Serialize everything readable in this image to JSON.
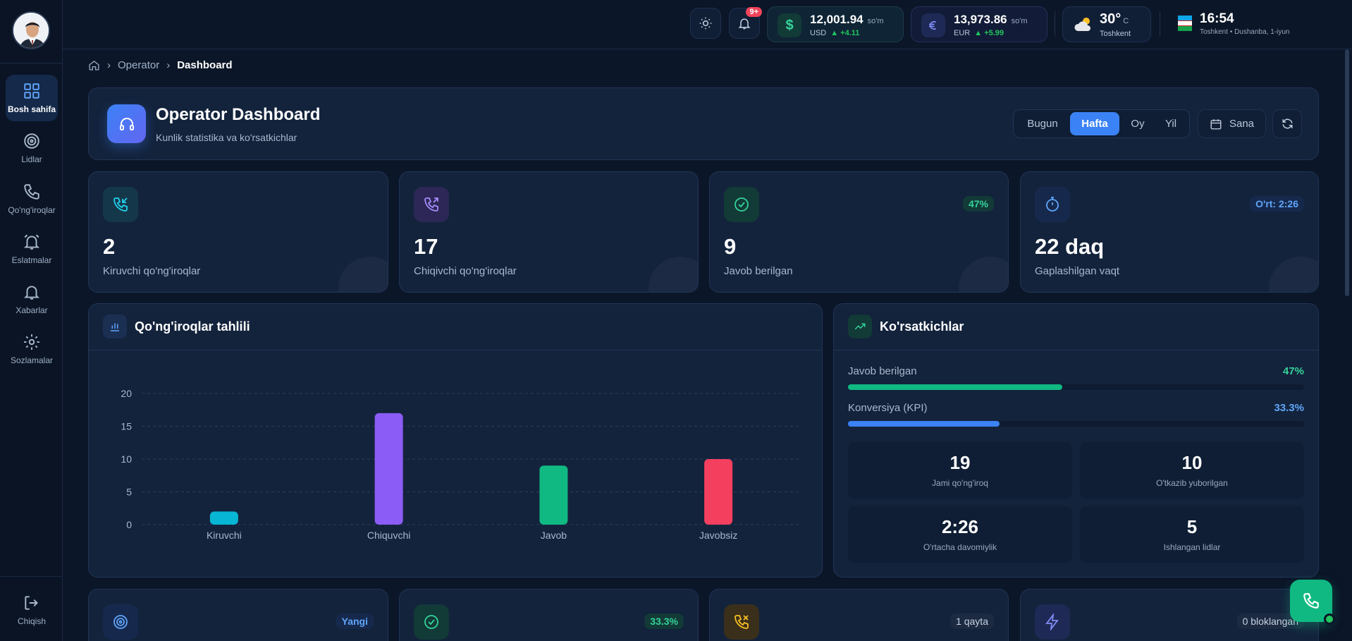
{
  "sidebar": {
    "items": [
      {
        "label": "Bosh sahifa",
        "icon": "grid-icon"
      },
      {
        "label": "Lidlar",
        "icon": "target-icon"
      },
      {
        "label": "Qo'ng'iroqlar",
        "icon": "phone-icon"
      },
      {
        "label": "Eslatmalar",
        "icon": "alarm-icon"
      },
      {
        "label": "Xabarlar",
        "icon": "bell-icon"
      },
      {
        "label": "Sozlamalar",
        "icon": "gear-icon"
      }
    ],
    "logout": "Chiqish"
  },
  "topbar": {
    "notifications_badge": "9+",
    "usd": {
      "value": "12,001.94",
      "unit": "so'm",
      "code": "USD",
      "change": "+4.11",
      "symbol": "$"
    },
    "eur": {
      "value": "13,973.86",
      "unit": "so'm",
      "code": "EUR",
      "change": "+5.99"
    },
    "weather": {
      "temp": "30°",
      "unit": "C",
      "city": "Toshkent"
    },
    "clock": {
      "time": "16:54",
      "sub": "Toshkent • Dushanba, 1-iyun"
    }
  },
  "breadcrumb": {
    "parent": "Operator",
    "current": "Dashboard"
  },
  "header": {
    "title": "Operator Dashboard",
    "subtitle": "Kunlik statistika va ko'rsatkichlar",
    "periods": [
      "Bugun",
      "Hafta",
      "Oy",
      "Yil"
    ],
    "active_period": "Hafta",
    "date_label": "Sana"
  },
  "stats": [
    {
      "value": "2",
      "label": "Kiruvchi qo'ng'iroqlar"
    },
    {
      "value": "17",
      "label": "Chiqivchi qo'ng'iroqlar"
    },
    {
      "value": "9",
      "label": "Javob berilgan",
      "chip": "47%"
    },
    {
      "value": "22 daq",
      "label": "Gaplashilgan vaqt",
      "chip": "O'rt: 2:26"
    }
  ],
  "chart_panel": {
    "title": "Qo'ng'iroqlar tahlili"
  },
  "chart_data": {
    "type": "bar",
    "categories": [
      "Kiruvchi",
      "Chiquvchi",
      "Javob",
      "Javobsiz"
    ],
    "values": [
      2,
      17,
      9,
      10
    ],
    "colors": [
      "#06b6d4",
      "#8b5cf6",
      "#10b981",
      "#f43f5e"
    ],
    "yticks": [
      0,
      5,
      10,
      15,
      20
    ],
    "ylim": [
      0,
      20
    ],
    "grid": true
  },
  "kpi_panel": {
    "title": "Ko'rsatkichlar",
    "bars": [
      {
        "label": "Javob berilgan",
        "pct": "47%",
        "value": 47,
        "color": "#10b981",
        "textcolor": "#34d399"
      },
      {
        "label": "Konversiya (KPI)",
        "pct": "33.3%",
        "value": 33.3,
        "color": "#3b82f6",
        "textcolor": "#60a5fa"
      }
    ],
    "minis": [
      {
        "value": "19",
        "label": "Jami qo'ng'iroq"
      },
      {
        "value": "10",
        "label": "O'tkazib yuborilgan"
      },
      {
        "value": "2:26",
        "label": "O'rtacha davomiylik"
      },
      {
        "value": "5",
        "label": "Ishlangan lidlar"
      }
    ]
  },
  "bottom_cards": [
    {
      "chip": "Yangi"
    },
    {
      "chip": "33.3%"
    },
    {
      "chip": "1 qayta"
    },
    {
      "chip": "0 bloklangan"
    }
  ]
}
